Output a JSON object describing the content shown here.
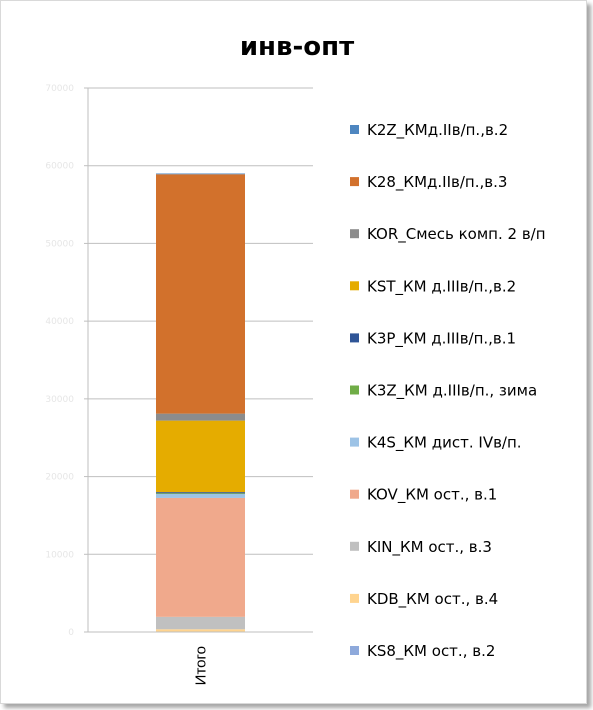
{
  "chart_data": {
    "type": "bar",
    "stacked": true,
    "title": "инв-опт",
    "categories": [
      "Итого"
    ],
    "ylim": [
      0,
      70000
    ],
    "yticks": [
      0,
      10000,
      20000,
      30000,
      40000,
      50000,
      60000,
      70000
    ],
    "grid": true,
    "legend_position": "right",
    "series": [
      {
        "name": "KS8_КМ ост., в.2",
        "color": "#8EA9DB",
        "values": [
          50
        ]
      },
      {
        "name": "KDB_КМ ост., в.4",
        "color": "#FFD48F",
        "values": [
          300
        ]
      },
      {
        "name": "KIN_КМ ост., в.3",
        "color": "#C0C0C0",
        "values": [
          1600
        ]
      },
      {
        "name": "KOV_КМ ост., в.1",
        "color": "#F0A98C",
        "values": [
          15300
        ]
      },
      {
        "name": "K4S_КМ дист. IVв/п.",
        "color": "#9DC3E6",
        "values": [
          500
        ]
      },
      {
        "name": "K3Z_КМ д.IIIв/п., зима",
        "color": "#70AD47",
        "values": [
          100
        ]
      },
      {
        "name": "K3P_КМ д.IIIв/п.,в.1",
        "color": "#2F5597",
        "values": [
          150
        ]
      },
      {
        "name": "KST_КМ д.IIIв/п.,в.2",
        "color": "#E5AC00",
        "values": [
          9200
        ]
      },
      {
        "name": "KOR_Смесь комп. 2 в/п",
        "color": "#8C8C8C",
        "values": [
          900
        ]
      },
      {
        "name": "K28_КМд.IIв/п.,в.3",
        "color": "#D2712C",
        "values": [
          30800
        ]
      },
      {
        "name": "K2Z_КМд.IIв/п.,в.2",
        "color": "#4E86C0",
        "values": [
          100
        ]
      }
    ]
  }
}
